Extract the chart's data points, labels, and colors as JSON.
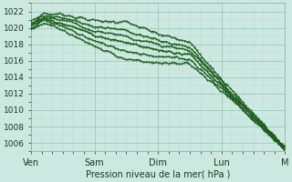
{
  "xlabel": "Pression niveau de la mer( hPa )",
  "background_color": "#cce8e0",
  "grid_major_color": "#99ccbb",
  "grid_minor_color": "#bbddd4",
  "line_color": "#1a5c1a",
  "ylim": [
    1005,
    1023
  ],
  "yticks": [
    1006,
    1008,
    1010,
    1012,
    1014,
    1016,
    1018,
    1020,
    1022
  ],
  "xtick_positions": [
    0,
    1,
    2,
    3,
    4
  ],
  "xtick_labels": [
    "Ven",
    "Sam",
    "Dim",
    "Lun",
    "M"
  ],
  "n_points": 200
}
